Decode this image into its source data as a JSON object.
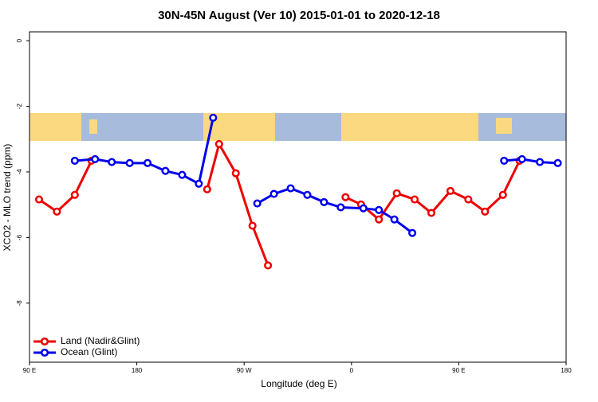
{
  "chart_data": {
    "type": "line",
    "title": "30N-45N August (Ver 10)   2015-01-01 to 2020-12-18",
    "x_label": "Longitude (deg E)",
    "y_label": "XCO2 - MLO trend (ppm)",
    "xlim": [
      90,
      540
    ],
    "xticks": [
      {
        "value": 90,
        "label": "90 E"
      },
      180,
      {
        "value": 270,
        "label": "90 W"
      },
      {
        "value": 360,
        "label": "0"
      },
      {
        "value": 450,
        "label": "90 E"
      },
      {
        "value": 540,
        "label": "180"
      }
    ],
    "ylim": [
      -9.8,
      0.27
    ],
    "yticks": [
      0,
      -2,
      -4,
      -6,
      -8
    ],
    "legend": "bottomleft",
    "series": [
      {
        "name": "Land (Nadir&Glint)",
        "color": "#ee0000",
        "x": [
          98,
          113,
          128,
          142,
          null,
          239,
          249,
          263,
          277,
          290,
          null,
          355,
          368,
          383,
          398,
          413,
          427,
          443,
          458,
          472,
          487,
          501
        ],
        "values": [
          -4.84,
          -5.21,
          -4.7,
          -3.66,
          null,
          -4.53,
          -3.15,
          -4.04,
          -5.64,
          -6.85,
          null,
          -4.77,
          -4.99,
          -5.45,
          -4.65,
          -4.84,
          -5.25,
          -4.58,
          -4.84,
          -5.21,
          -4.7,
          -3.66
        ]
      },
      {
        "name": "Ocean (Glint)",
        "color": "#0000ee",
        "x": [
          128,
          145,
          159,
          174,
          189,
          204,
          218,
          232,
          244,
          null,
          281,
          295,
          309,
          323,
          337,
          351,
          370,
          383,
          396,
          411,
          null,
          488,
          503,
          518,
          533
        ],
        "values": [
          -3.66,
          -3.61,
          -3.7,
          -3.73,
          -3.73,
          -3.97,
          -4.09,
          -4.36,
          -2.35,
          null,
          -4.96,
          -4.67,
          -4.5,
          -4.7,
          -4.92,
          -5.08,
          -5.11,
          -5.16,
          -5.45,
          -5.86,
          null,
          -3.66,
          -3.61,
          -3.7,
          -3.73
        ]
      }
    ]
  }
}
